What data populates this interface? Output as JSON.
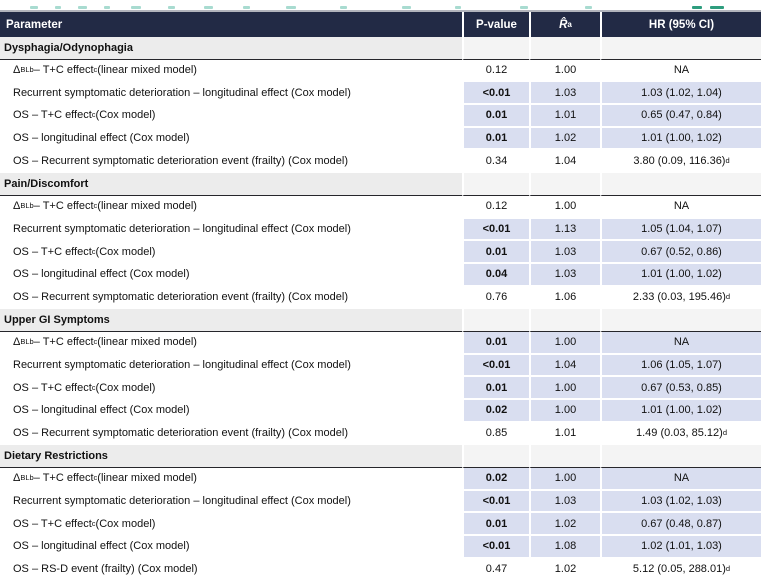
{
  "colors": {
    "header_bg": "#222a45",
    "highlight": "#d9def0",
    "section_bg": "#ececec",
    "section_value_bg": "#f4f4f4",
    "frag_light": "#a8dbd0",
    "frag_dark": "#2e9d7e"
  },
  "header": {
    "columns": [
      {
        "label": "Parameter"
      },
      {
        "label": "P-value"
      },
      {
        "label": "R̂",
        "sup": "a"
      },
      {
        "label": "HR (95% CI)"
      }
    ]
  },
  "sections": [
    {
      "title": "Dysphagia/Odynophagia",
      "rows": [
        {
          "param": [
            {
              "t": "Δ"
            },
            {
              "sub": "BL"
            },
            {
              "sup": "b"
            },
            {
              "t": " – T+C effect"
            },
            {
              "sup": "c"
            },
            {
              "t": " (linear mixed model)"
            }
          ],
          "p": "0.12",
          "p_bold": false,
          "r": "1.00",
          "hr": "NA",
          "hr_sup": "",
          "hl": false
        },
        {
          "param": [
            {
              "t": "Recurrent symptomatic deterioration – longitudinal effect (Cox model)"
            }
          ],
          "p": "<0.01",
          "p_bold": true,
          "r": "1.03",
          "hr": "1.03 (1.02, 1.04)",
          "hr_sup": "",
          "hl": true
        },
        {
          "param": [
            {
              "t": "OS – T+C effect"
            },
            {
              "sup": "c"
            },
            {
              "t": " (Cox model)"
            }
          ],
          "p": "0.01",
          "p_bold": true,
          "r": "1.01",
          "hr": "0.65 (0.47, 0.84)",
          "hr_sup": "",
          "hl": true
        },
        {
          "param": [
            {
              "t": "OS – longitudinal effect (Cox model)"
            }
          ],
          "p": "0.01",
          "p_bold": true,
          "r": "1.02",
          "hr": "1.01 (1.00, 1.02)",
          "hr_sup": "",
          "hl": true
        },
        {
          "param": [
            {
              "t": "OS – Recurrent symptomatic deterioration event (frailty) (Cox model)"
            }
          ],
          "p": "0.34",
          "p_bold": false,
          "r": "1.04",
          "hr": "3.80 (0.09, 116.36)",
          "hr_sup": "d",
          "hl": false
        }
      ]
    },
    {
      "title": "Pain/Discomfort",
      "rows": [
        {
          "param": [
            {
              "t": "Δ"
            },
            {
              "sub": "BL"
            },
            {
              "sup": "b"
            },
            {
              "t": " – T+C effect"
            },
            {
              "sup": "c"
            },
            {
              "t": " (linear mixed model)"
            }
          ],
          "p": "0.12",
          "p_bold": false,
          "r": "1.00",
          "hr": "NA",
          "hr_sup": "",
          "hl": false
        },
        {
          "param": [
            {
              "t": "Recurrent symptomatic deterioration – longitudinal effect (Cox model)"
            }
          ],
          "p": "<0.01",
          "p_bold": true,
          "r": "1.13",
          "hr": "1.05 (1.04, 1.07)",
          "hr_sup": "",
          "hl": true
        },
        {
          "param": [
            {
              "t": "OS – T+C effect"
            },
            {
              "sup": "c"
            },
            {
              "t": " (Cox model)"
            }
          ],
          "p": "0.01",
          "p_bold": true,
          "r": "1.03",
          "hr": "0.67 (0.52, 0.86)",
          "hr_sup": "",
          "hl": true
        },
        {
          "param": [
            {
              "t": "OS – longitudinal effect (Cox model)"
            }
          ],
          "p": "0.04",
          "p_bold": true,
          "r": "1.03",
          "hr": "1.01 (1.00, 1.02)",
          "hr_sup": "",
          "hl": true
        },
        {
          "param": [
            {
              "t": "OS – Recurrent symptomatic deterioration event (frailty) (Cox model)"
            }
          ],
          "p": "0.76",
          "p_bold": false,
          "r": "1.06",
          "hr": "2.33 (0.03, 195.46)",
          "hr_sup": "d",
          "hl": false
        }
      ]
    },
    {
      "title": "Upper GI Symptoms",
      "rows": [
        {
          "param": [
            {
              "t": "Δ"
            },
            {
              "sub": "BL"
            },
            {
              "sup": "b"
            },
            {
              "t": " – T+C effect"
            },
            {
              "sup": "c"
            },
            {
              "t": " (linear mixed model)"
            }
          ],
          "p": "0.01",
          "p_bold": true,
          "r": "1.00",
          "hr": "NA",
          "hr_sup": "",
          "hl": true
        },
        {
          "param": [
            {
              "t": "Recurrent symptomatic deterioration – longitudinal effect (Cox model)"
            }
          ],
          "p": "<0.01",
          "p_bold": true,
          "r": "1.04",
          "hr": "1.06 (1.05, 1.07)",
          "hr_sup": "",
          "hl": true
        },
        {
          "param": [
            {
              "t": "OS – T+C effect"
            },
            {
              "sup": "c"
            },
            {
              "t": " (Cox model)"
            }
          ],
          "p": "0.01",
          "p_bold": true,
          "r": "1.00",
          "hr": "0.67 (0.53, 0.85)",
          "hr_sup": "",
          "hl": true
        },
        {
          "param": [
            {
              "t": "OS – longitudinal effect (Cox model)"
            }
          ],
          "p": "0.02",
          "p_bold": true,
          "r": "1.00",
          "hr": "1.01 (1.00, 1.02)",
          "hr_sup": "",
          "hl": true
        },
        {
          "param": [
            {
              "t": "OS – Recurrent symptomatic deterioration event (frailty) (Cox model)"
            }
          ],
          "p": "0.85",
          "p_bold": false,
          "r": "1.01",
          "hr": "1.49 (0.03, 85.12)",
          "hr_sup": "d",
          "hl": false
        }
      ]
    },
    {
      "title": "Dietary Restrictions",
      "rows": [
        {
          "param": [
            {
              "t": "Δ"
            },
            {
              "sub": "BL"
            },
            {
              "sup": "b"
            },
            {
              "t": " – T+C effect"
            },
            {
              "sup": "c"
            },
            {
              "t": " (linear mixed model)"
            }
          ],
          "p": "0.02",
          "p_bold": true,
          "r": "1.00",
          "hr": "NA",
          "hr_sup": "",
          "hl": true
        },
        {
          "param": [
            {
              "t": "Recurrent symptomatic deterioration – longitudinal effect (Cox model)"
            }
          ],
          "p": "<0.01",
          "p_bold": true,
          "r": "1.03",
          "hr": "1.03 (1.02, 1.03)",
          "hr_sup": "",
          "hl": true
        },
        {
          "param": [
            {
              "t": "OS – T+C effect"
            },
            {
              "sup": "c"
            },
            {
              "t": " (Cox model)"
            }
          ],
          "p": "0.01",
          "p_bold": true,
          "r": "1.02",
          "hr": "0.67 (0.48, 0.87)",
          "hr_sup": "",
          "hl": true
        },
        {
          "param": [
            {
              "t": "OS – longitudinal effect (Cox model)"
            }
          ],
          "p": "<0.01",
          "p_bold": true,
          "r": "1.08",
          "hr": "1.02 (1.01, 1.03)",
          "hr_sup": "",
          "hl": true
        },
        {
          "param": [
            {
              "t": "OS – RS-D event (frailty) (Cox model)"
            }
          ],
          "p": "0.47",
          "p_bold": false,
          "r": "1.02",
          "hr": "5.12 (0.05, 288.01)",
          "hr_sup": "d",
          "hl": false
        }
      ]
    }
  ]
}
